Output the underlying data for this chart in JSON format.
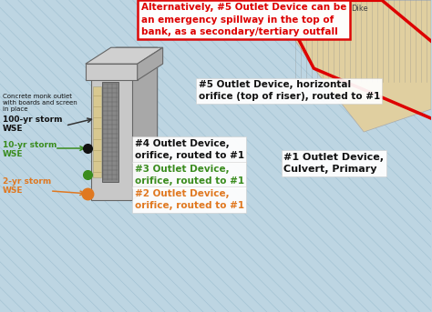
{
  "bg_color": "#bdd5e2",
  "red_box_text": "Alternatively, #5 Outlet Device can be\nan emergency spillway in the top of\nbank, as a secondary/tertiary outfall",
  "annotation_5": "#5 Outlet Device, horizontal\norifice (top of riser), routed to #1",
  "annotation_4": "#4 Outlet Device,\norifice, routed to #1",
  "annotation_3": "#3 Outlet Device,\norifice, routed to #1",
  "annotation_2": "#2 Outlet Device,\norifice, routed to #1",
  "annotation_1": "#1 Outlet Device,\nCulvert, Primary",
  "monk_text": "Concrete monk outlet\nwith boards and screen\nin place",
  "label_100yr": "100-yr storm\nWSE",
  "label_10yr": "10-yr storm\nWSE",
  "label_2yr": "2-yr storm\nWSE",
  "dike_label": "Dike",
  "color_black": "#111111",
  "color_green": "#3a8c1e",
  "color_orange": "#e07820",
  "color_red": "#dd0000",
  "color_white": "#ffffff",
  "dike_fill": "#e0cfa0",
  "arrow_color_100yr": "#333333",
  "arrow_color_10yr": "#3a8c1e",
  "arrow_color_2yr": "#e07820",
  "line_color": "#8fb5c8"
}
